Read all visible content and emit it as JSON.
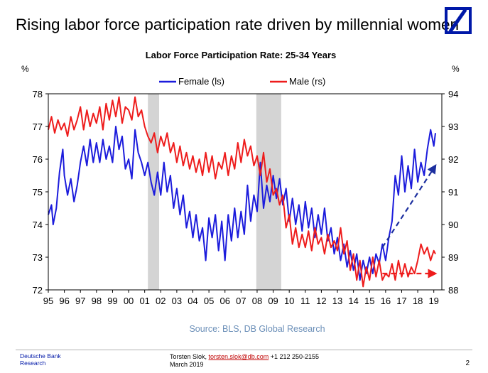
{
  "slide": {
    "title": "Rising labor force participation rate driven by millennial women",
    "logo": "deutsche-bank-logo",
    "footer": {
      "org_line1": "Deutsche Bank",
      "org_line2": "Research",
      "author": "Torsten Slok,",
      "email": "torsten.slok@db.com",
      "phone": "+1 212 250-2155",
      "date": "March 2019",
      "page": "2"
    }
  },
  "chart_data": {
    "type": "line",
    "title": "Labor Force Participation Rate: 25-34 Years",
    "source": "Source: BLS, DB Global Research",
    "left_unit": "%",
    "right_unit": "%",
    "y_left": {
      "min": 72,
      "max": 78,
      "ticks": [
        "72",
        "73",
        "74",
        "75",
        "76",
        "77",
        "78"
      ]
    },
    "y_right": {
      "min": 88,
      "max": 94,
      "ticks": [
        "88",
        "89",
        "90",
        "91",
        "92",
        "93",
        "94"
      ]
    },
    "x": {
      "min": 1995.0,
      "max": 2019.5,
      "ticks": [
        "95",
        "96",
        "97",
        "98",
        "99",
        "00",
        "01",
        "02",
        "03",
        "04",
        "05",
        "06",
        "07",
        "08",
        "09",
        "10",
        "11",
        "12",
        "13",
        "14",
        "15",
        "16",
        "17",
        "18",
        "19"
      ]
    },
    "recessions": [
      {
        "start": 2001.2,
        "end": 2001.9
      },
      {
        "start": 2007.95,
        "end": 2009.5
      }
    ],
    "legend_position": "top-center",
    "colors": {
      "female": "#1c1cdc",
      "male": "#ee1c1c",
      "recession": "#d4d4d4"
    },
    "series": [
      {
        "name": "Female (ls)",
        "axis": "left",
        "points": [
          [
            1995.0,
            74.3
          ],
          [
            1995.2,
            74.6
          ],
          [
            1995.3,
            74.0
          ],
          [
            1995.5,
            74.5
          ],
          [
            1995.7,
            75.6
          ],
          [
            1995.9,
            76.3
          ],
          [
            1996.0,
            75.5
          ],
          [
            1996.2,
            74.9
          ],
          [
            1996.4,
            75.4
          ],
          [
            1996.6,
            74.7
          ],
          [
            1996.8,
            75.2
          ],
          [
            1997.0,
            75.9
          ],
          [
            1997.2,
            76.4
          ],
          [
            1997.4,
            75.8
          ],
          [
            1997.6,
            76.6
          ],
          [
            1997.8,
            75.9
          ],
          [
            1998.0,
            76.5
          ],
          [
            1998.2,
            75.9
          ],
          [
            1998.4,
            76.6
          ],
          [
            1998.6,
            76.0
          ],
          [
            1998.8,
            76.4
          ],
          [
            1999.0,
            75.9
          ],
          [
            1999.2,
            77.0
          ],
          [
            1999.4,
            76.3
          ],
          [
            1999.6,
            76.7
          ],
          [
            1999.8,
            75.7
          ],
          [
            2000.0,
            76.0
          ],
          [
            2000.2,
            75.4
          ],
          [
            2000.4,
            76.9
          ],
          [
            2000.6,
            76.2
          ],
          [
            2000.8,
            75.9
          ],
          [
            2001.0,
            75.5
          ],
          [
            2001.2,
            75.9
          ],
          [
            2001.4,
            75.3
          ],
          [
            2001.6,
            74.9
          ],
          [
            2001.8,
            75.6
          ],
          [
            2002.0,
            74.9
          ],
          [
            2002.2,
            75.9
          ],
          [
            2002.4,
            75.0
          ],
          [
            2002.6,
            75.5
          ],
          [
            2002.8,
            74.5
          ],
          [
            2003.0,
            75.1
          ],
          [
            2003.2,
            74.3
          ],
          [
            2003.4,
            74.9
          ],
          [
            2003.6,
            73.9
          ],
          [
            2003.8,
            74.4
          ],
          [
            2004.0,
            73.6
          ],
          [
            2004.2,
            74.3
          ],
          [
            2004.4,
            73.5
          ],
          [
            2004.6,
            73.9
          ],
          [
            2004.8,
            72.9
          ],
          [
            2005.0,
            74.2
          ],
          [
            2005.2,
            73.6
          ],
          [
            2005.4,
            74.3
          ],
          [
            2005.6,
            73.2
          ],
          [
            2005.8,
            74.1
          ],
          [
            2006.0,
            72.9
          ],
          [
            2006.2,
            74.3
          ],
          [
            2006.4,
            73.5
          ],
          [
            2006.6,
            74.5
          ],
          [
            2006.8,
            73.6
          ],
          [
            2007.0,
            74.4
          ],
          [
            2007.2,
            73.7
          ],
          [
            2007.4,
            75.2
          ],
          [
            2007.6,
            74.1
          ],
          [
            2007.8,
            74.9
          ],
          [
            2008.0,
            74.4
          ],
          [
            2008.2,
            75.9
          ],
          [
            2008.4,
            74.5
          ],
          [
            2008.6,
            75.2
          ],
          [
            2008.8,
            74.7
          ],
          [
            2009.0,
            75.5
          ],
          [
            2009.2,
            74.8
          ],
          [
            2009.4,
            75.4
          ],
          [
            2009.6,
            74.6
          ],
          [
            2009.8,
            75.1
          ],
          [
            2010.0,
            74.1
          ],
          [
            2010.2,
            74.8
          ],
          [
            2010.4,
            74.0
          ],
          [
            2010.6,
            74.6
          ],
          [
            2010.8,
            73.8
          ],
          [
            2011.0,
            74.7
          ],
          [
            2011.2,
            73.9
          ],
          [
            2011.4,
            74.5
          ],
          [
            2011.6,
            73.6
          ],
          [
            2011.8,
            74.3
          ],
          [
            2012.0,
            73.7
          ],
          [
            2012.2,
            74.5
          ],
          [
            2012.4,
            73.5
          ],
          [
            2012.6,
            73.9
          ],
          [
            2012.8,
            73.1
          ],
          [
            2013.0,
            73.6
          ],
          [
            2013.2,
            72.9
          ],
          [
            2013.4,
            73.4
          ],
          [
            2013.6,
            72.7
          ],
          [
            2013.8,
            73.2
          ],
          [
            2014.0,
            72.6
          ],
          [
            2014.2,
            73.1
          ],
          [
            2014.4,
            72.3
          ],
          [
            2014.6,
            72.9
          ],
          [
            2014.8,
            72.5
          ],
          [
            2015.0,
            73.0
          ],
          [
            2015.2,
            72.5
          ],
          [
            2015.4,
            73.1
          ],
          [
            2015.6,
            72.8
          ],
          [
            2015.8,
            73.4
          ],
          [
            2016.0,
            72.9
          ],
          [
            2016.2,
            73.6
          ],
          [
            2016.4,
            74.1
          ],
          [
            2016.6,
            75.5
          ],
          [
            2016.8,
            74.9
          ],
          [
            2017.0,
            76.1
          ],
          [
            2017.2,
            75.0
          ],
          [
            2017.4,
            75.8
          ],
          [
            2017.6,
            75.1
          ],
          [
            2017.8,
            76.3
          ],
          [
            2018.0,
            75.3
          ],
          [
            2018.2,
            75.9
          ],
          [
            2018.4,
            75.5
          ],
          [
            2018.6,
            76.3
          ],
          [
            2018.8,
            76.9
          ],
          [
            2019.0,
            76.4
          ],
          [
            2019.1,
            76.8
          ]
        ]
      },
      {
        "name": "Male (rs)",
        "axis": "right",
        "points": [
          [
            1995.0,
            92.9
          ],
          [
            1995.2,
            93.3
          ],
          [
            1995.4,
            92.8
          ],
          [
            1995.6,
            93.2
          ],
          [
            1995.8,
            92.9
          ],
          [
            1996.0,
            93.1
          ],
          [
            1996.2,
            92.7
          ],
          [
            1996.4,
            93.3
          ],
          [
            1996.6,
            92.9
          ],
          [
            1996.8,
            93.2
          ],
          [
            1997.0,
            93.6
          ],
          [
            1997.2,
            92.9
          ],
          [
            1997.4,
            93.5
          ],
          [
            1997.6,
            93.0
          ],
          [
            1997.8,
            93.4
          ],
          [
            1998.0,
            93.1
          ],
          [
            1998.2,
            93.6
          ],
          [
            1998.4,
            92.9
          ],
          [
            1998.6,
            93.7
          ],
          [
            1998.8,
            93.2
          ],
          [
            1999.0,
            93.8
          ],
          [
            1999.2,
            93.3
          ],
          [
            1999.4,
            93.9
          ],
          [
            1999.6,
            93.1
          ],
          [
            1999.8,
            93.6
          ],
          [
            2000.0,
            93.5
          ],
          [
            2000.2,
            93.2
          ],
          [
            2000.4,
            93.9
          ],
          [
            2000.6,
            93.3
          ],
          [
            2000.8,
            93.5
          ],
          [
            2001.0,
            93.0
          ],
          [
            2001.2,
            92.7
          ],
          [
            2001.4,
            92.5
          ],
          [
            2001.6,
            92.8
          ],
          [
            2001.8,
            92.2
          ],
          [
            2002.0,
            92.7
          ],
          [
            2002.2,
            92.4
          ],
          [
            2002.4,
            92.8
          ],
          [
            2002.6,
            92.2
          ],
          [
            2002.8,
            92.5
          ],
          [
            2003.0,
            91.9
          ],
          [
            2003.2,
            92.4
          ],
          [
            2003.4,
            91.8
          ],
          [
            2003.6,
            92.2
          ],
          [
            2003.8,
            91.7
          ],
          [
            2004.0,
            92.1
          ],
          [
            2004.2,
            91.6
          ],
          [
            2004.4,
            92.0
          ],
          [
            2004.6,
            91.5
          ],
          [
            2004.8,
            92.2
          ],
          [
            2005.0,
            91.6
          ],
          [
            2005.2,
            92.1
          ],
          [
            2005.4,
            91.4
          ],
          [
            2005.6,
            91.9
          ],
          [
            2005.8,
            91.7
          ],
          [
            2006.0,
            92.2
          ],
          [
            2006.2,
            91.5
          ],
          [
            2006.4,
            92.1
          ],
          [
            2006.6,
            91.7
          ],
          [
            2006.8,
            92.5
          ],
          [
            2007.0,
            91.9
          ],
          [
            2007.2,
            92.6
          ],
          [
            2007.4,
            92.1
          ],
          [
            2007.6,
            92.4
          ],
          [
            2007.8,
            91.8
          ],
          [
            2008.0,
            92.1
          ],
          [
            2008.2,
            91.5
          ],
          [
            2008.4,
            92.2
          ],
          [
            2008.6,
            91.3
          ],
          [
            2008.8,
            91.7
          ],
          [
            2009.0,
            90.9
          ],
          [
            2009.2,
            91.1
          ],
          [
            2009.4,
            90.6
          ],
          [
            2009.6,
            90.9
          ],
          [
            2009.8,
            89.9
          ],
          [
            2010.0,
            90.3
          ],
          [
            2010.2,
            89.4
          ],
          [
            2010.4,
            89.9
          ],
          [
            2010.6,
            89.3
          ],
          [
            2010.8,
            89.7
          ],
          [
            2011.0,
            89.3
          ],
          [
            2011.2,
            89.8
          ],
          [
            2011.4,
            89.2
          ],
          [
            2011.6,
            89.9
          ],
          [
            2011.8,
            89.4
          ],
          [
            2012.0,
            89.6
          ],
          [
            2012.2,
            89.1
          ],
          [
            2012.4,
            89.7
          ],
          [
            2012.6,
            89.3
          ],
          [
            2012.8,
            89.5
          ],
          [
            2013.0,
            89.2
          ],
          [
            2013.2,
            89.9
          ],
          [
            2013.4,
            89.1
          ],
          [
            2013.6,
            89.5
          ],
          [
            2013.8,
            88.6
          ],
          [
            2014.0,
            89.1
          ],
          [
            2014.2,
            88.3
          ],
          [
            2014.4,
            88.9
          ],
          [
            2014.6,
            88.1
          ],
          [
            2014.8,
            88.7
          ],
          [
            2015.0,
            88.3
          ],
          [
            2015.2,
            89.0
          ],
          [
            2015.4,
            88.4
          ],
          [
            2015.6,
            88.9
          ],
          [
            2015.8,
            88.3
          ],
          [
            2016.0,
            88.5
          ],
          [
            2016.2,
            88.4
          ],
          [
            2016.4,
            88.8
          ],
          [
            2016.6,
            88.3
          ],
          [
            2016.8,
            88.9
          ],
          [
            2017.0,
            88.4
          ],
          [
            2017.2,
            88.8
          ],
          [
            2017.4,
            88.4
          ],
          [
            2017.6,
            88.7
          ],
          [
            2017.8,
            88.5
          ],
          [
            2018.0,
            88.9
          ],
          [
            2018.2,
            89.4
          ],
          [
            2018.4,
            89.1
          ],
          [
            2018.6,
            89.3
          ],
          [
            2018.8,
            88.9
          ],
          [
            2019.0,
            89.2
          ],
          [
            2019.1,
            89.1
          ]
        ]
      }
    ],
    "trend_lines": [
      {
        "series": "Female (ls)",
        "axis": "left",
        "from": [
          2015.8,
          73.3
        ],
        "to": [
          2019.1,
          75.8
        ]
      },
      {
        "series": "Male (rs)",
        "axis": "right",
        "from": [
          2015.8,
          88.5
        ],
        "to": [
          2019.1,
          88.5
        ]
      }
    ],
    "grid": false
  }
}
